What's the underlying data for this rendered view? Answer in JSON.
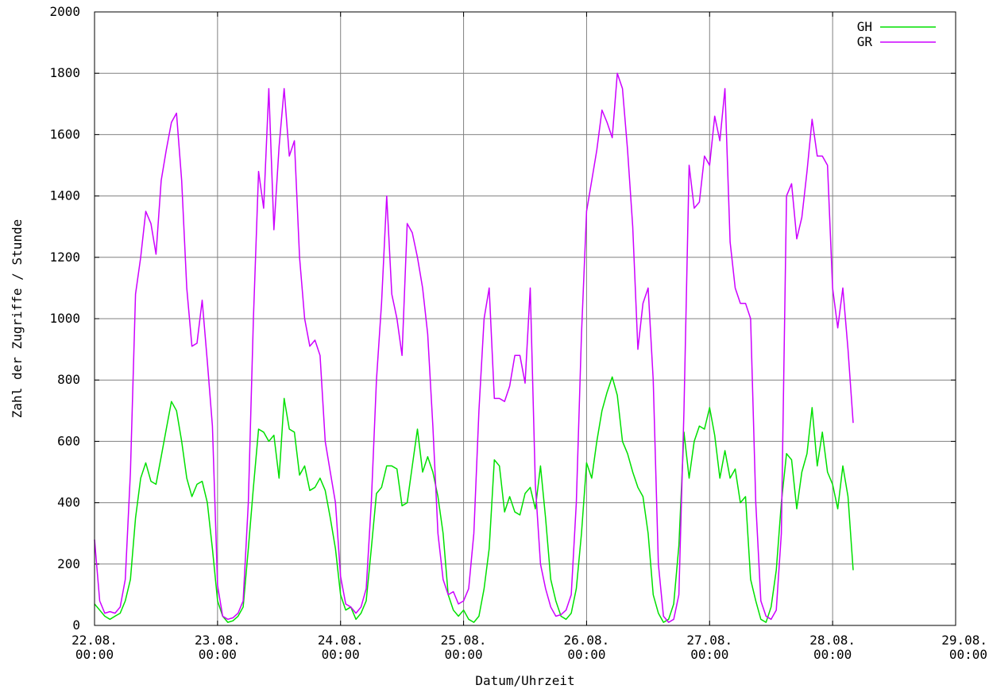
{
  "chart_data": {
    "type": "line",
    "xlabel": "Datum/Uhrzeit",
    "ylabel": "Zahl der Zugriffe / Stunde",
    "ylim": [
      0,
      2000
    ],
    "xlim_hours": [
      0,
      168
    ],
    "grid": true,
    "legend_position": "top-right",
    "x_ticks": [
      {
        "line1": "22.08.",
        "line2": "00:00"
      },
      {
        "line1": "23.08.",
        "line2": "00:00"
      },
      {
        "line1": "24.08.",
        "line2": "00:00"
      },
      {
        "line1": "25.08.",
        "line2": "00:00"
      },
      {
        "line1": "26.08.",
        "line2": "00:00"
      },
      {
        "line1": "27.08.",
        "line2": "00:00"
      },
      {
        "line1": "28.08.",
        "line2": "00:00"
      },
      {
        "line1": "29.08.",
        "line2": "00:00"
      }
    ],
    "y_ticks": [
      0,
      200,
      400,
      600,
      800,
      1000,
      1200,
      1400,
      1600,
      1800,
      2000
    ],
    "series": [
      {
        "name": "GH",
        "color": "#00e000",
        "points": [
          [
            0,
            70
          ],
          [
            1,
            50
          ],
          [
            2,
            30
          ],
          [
            3,
            20
          ],
          [
            4,
            30
          ],
          [
            5,
            40
          ],
          [
            6,
            80
          ],
          [
            7,
            150
          ],
          [
            8,
            350
          ],
          [
            9,
            480
          ],
          [
            10,
            530
          ],
          [
            11,
            470
          ],
          [
            12,
            460
          ],
          [
            13,
            550
          ],
          [
            14,
            640
          ],
          [
            15,
            730
          ],
          [
            16,
            700
          ],
          [
            17,
            600
          ],
          [
            18,
            480
          ],
          [
            19,
            420
          ],
          [
            20,
            460
          ],
          [
            21,
            470
          ],
          [
            22,
            400
          ],
          [
            23,
            250
          ],
          [
            24,
            80
          ],
          [
            25,
            30
          ],
          [
            26,
            10
          ],
          [
            27,
            15
          ],
          [
            28,
            30
          ],
          [
            29,
            60
          ],
          [
            30,
            250
          ],
          [
            31,
            450
          ],
          [
            32,
            640
          ],
          [
            33,
            630
          ],
          [
            34,
            600
          ],
          [
            35,
            620
          ],
          [
            36,
            480
          ],
          [
            37,
            740
          ],
          [
            38,
            640
          ],
          [
            39,
            630
          ],
          [
            40,
            490
          ],
          [
            41,
            520
          ],
          [
            42,
            440
          ],
          [
            43,
            450
          ],
          [
            44,
            480
          ],
          [
            45,
            440
          ],
          [
            46,
            350
          ],
          [
            47,
            250
          ],
          [
            48,
            100
          ],
          [
            49,
            50
          ],
          [
            50,
            60
          ],
          [
            51,
            20
          ],
          [
            52,
            40
          ],
          [
            53,
            80
          ],
          [
            54,
            250
          ],
          [
            55,
            430
          ],
          [
            56,
            450
          ],
          [
            57,
            520
          ],
          [
            58,
            520
          ],
          [
            59,
            510
          ],
          [
            60,
            390
          ],
          [
            61,
            400
          ],
          [
            62,
            520
          ],
          [
            63,
            640
          ],
          [
            64,
            500
          ],
          [
            65,
            550
          ],
          [
            66,
            500
          ],
          [
            67,
            420
          ],
          [
            68,
            300
          ],
          [
            69,
            100
          ],
          [
            70,
            50
          ],
          [
            71,
            30
          ],
          [
            72,
            50
          ],
          [
            73,
            20
          ],
          [
            74,
            10
          ],
          [
            75,
            30
          ],
          [
            76,
            120
          ],
          [
            77,
            250
          ],
          [
            78,
            540
          ],
          [
            79,
            520
          ],
          [
            80,
            370
          ],
          [
            81,
            420
          ],
          [
            82,
            370
          ],
          [
            83,
            360
          ],
          [
            84,
            430
          ],
          [
            85,
            450
          ],
          [
            86,
            380
          ],
          [
            87,
            520
          ],
          [
            88,
            350
          ],
          [
            89,
            150
          ],
          [
            90,
            80
          ],
          [
            91,
            30
          ],
          [
            92,
            20
          ],
          [
            93,
            40
          ],
          [
            94,
            120
          ],
          [
            95,
            300
          ],
          [
            96,
            530
          ],
          [
            97,
            480
          ],
          [
            98,
            600
          ],
          [
            99,
            700
          ],
          [
            100,
            760
          ],
          [
            101,
            810
          ],
          [
            102,
            750
          ],
          [
            103,
            600
          ],
          [
            104,
            560
          ],
          [
            105,
            500
          ],
          [
            106,
            450
          ],
          [
            107,
            420
          ],
          [
            108,
            300
          ],
          [
            109,
            100
          ],
          [
            110,
            40
          ],
          [
            111,
            10
          ],
          [
            112,
            20
          ],
          [
            113,
            70
          ],
          [
            114,
            260
          ],
          [
            115,
            630
          ],
          [
            116,
            480
          ],
          [
            117,
            600
          ],
          [
            118,
            650
          ],
          [
            119,
            640
          ],
          [
            120,
            710
          ],
          [
            121,
            620
          ],
          [
            122,
            480
          ],
          [
            123,
            570
          ],
          [
            124,
            480
          ],
          [
            125,
            510
          ],
          [
            126,
            400
          ],
          [
            127,
            420
          ],
          [
            128,
            150
          ],
          [
            129,
            80
          ],
          [
            130,
            20
          ],
          [
            131,
            10
          ],
          [
            132,
            60
          ],
          [
            133,
            180
          ],
          [
            134,
            400
          ],
          [
            135,
            560
          ],
          [
            136,
            540
          ],
          [
            137,
            380
          ],
          [
            138,
            500
          ],
          [
            139,
            560
          ],
          [
            140,
            710
          ],
          [
            141,
            520
          ],
          [
            142,
            630
          ],
          [
            143,
            500
          ],
          [
            144,
            460
          ],
          [
            145,
            380
          ],
          [
            146,
            520
          ],
          [
            147,
            420
          ],
          [
            148,
            180
          ]
        ]
      },
      {
        "name": "GR",
        "color": "#cc00ff",
        "points": [
          [
            0,
            280
          ],
          [
            1,
            80
          ],
          [
            2,
            40
          ],
          [
            3,
            45
          ],
          [
            4,
            40
          ],
          [
            5,
            60
          ],
          [
            6,
            150
          ],
          [
            7,
            500
          ],
          [
            8,
            1080
          ],
          [
            9,
            1200
          ],
          [
            10,
            1350
          ],
          [
            11,
            1310
          ],
          [
            12,
            1210
          ],
          [
            13,
            1450
          ],
          [
            14,
            1550
          ],
          [
            15,
            1640
          ],
          [
            16,
            1670
          ],
          [
            17,
            1450
          ],
          [
            18,
            1100
          ],
          [
            19,
            910
          ],
          [
            20,
            920
          ],
          [
            21,
            1060
          ],
          [
            22,
            860
          ],
          [
            23,
            650
          ],
          [
            24,
            130
          ],
          [
            25,
            30
          ],
          [
            26,
            20
          ],
          [
            27,
            25
          ],
          [
            28,
            40
          ],
          [
            29,
            80
          ],
          [
            30,
            400
          ],
          [
            31,
            1000
          ],
          [
            32,
            1480
          ],
          [
            33,
            1360
          ],
          [
            34,
            1750
          ],
          [
            35,
            1290
          ],
          [
            36,
            1560
          ],
          [
            37,
            1750
          ],
          [
            38,
            1530
          ],
          [
            39,
            1580
          ],
          [
            40,
            1200
          ],
          [
            41,
            1000
          ],
          [
            42,
            910
          ],
          [
            43,
            930
          ],
          [
            44,
            880
          ],
          [
            45,
            600
          ],
          [
            46,
            500
          ],
          [
            47,
            400
          ],
          [
            48,
            160
          ],
          [
            49,
            70
          ],
          [
            50,
            60
          ],
          [
            51,
            40
          ],
          [
            52,
            60
          ],
          [
            53,
            120
          ],
          [
            54,
            400
          ],
          [
            55,
            800
          ],
          [
            56,
            1050
          ],
          [
            57,
            1400
          ],
          [
            58,
            1080
          ],
          [
            59,
            1000
          ],
          [
            60,
            880
          ],
          [
            61,
            1310
          ],
          [
            62,
            1280
          ],
          [
            63,
            1200
          ],
          [
            64,
            1100
          ],
          [
            65,
            950
          ],
          [
            66,
            650
          ],
          [
            67,
            300
          ],
          [
            68,
            150
          ],
          [
            69,
            100
          ],
          [
            70,
            110
          ],
          [
            71,
            70
          ],
          [
            72,
            80
          ],
          [
            73,
            120
          ],
          [
            74,
            300
          ],
          [
            75,
            700
          ],
          [
            76,
            1000
          ],
          [
            77,
            1100
          ],
          [
            78,
            740
          ],
          [
            79,
            740
          ],
          [
            80,
            730
          ],
          [
            81,
            780
          ],
          [
            82,
            880
          ],
          [
            83,
            880
          ],
          [
            84,
            790
          ],
          [
            85,
            1100
          ],
          [
            86,
            460
          ],
          [
            87,
            200
          ],
          [
            88,
            120
          ],
          [
            89,
            60
          ],
          [
            90,
            30
          ],
          [
            91,
            35
          ],
          [
            92,
            50
          ],
          [
            93,
            100
          ],
          [
            94,
            400
          ],
          [
            95,
            950
          ],
          [
            96,
            1350
          ],
          [
            97,
            1450
          ],
          [
            98,
            1550
          ],
          [
            99,
            1680
          ],
          [
            100,
            1640
          ],
          [
            101,
            1590
          ],
          [
            102,
            1800
          ],
          [
            103,
            1750
          ],
          [
            104,
            1550
          ],
          [
            105,
            1300
          ],
          [
            106,
            900
          ],
          [
            107,
            1050
          ],
          [
            108,
            1100
          ],
          [
            109,
            800
          ],
          [
            110,
            200
          ],
          [
            111,
            30
          ],
          [
            112,
            10
          ],
          [
            113,
            20
          ],
          [
            114,
            100
          ],
          [
            115,
            700
          ],
          [
            116,
            1500
          ],
          [
            117,
            1360
          ],
          [
            118,
            1380
          ],
          [
            119,
            1530
          ],
          [
            120,
            1500
          ],
          [
            121,
            1660
          ],
          [
            122,
            1580
          ],
          [
            123,
            1750
          ],
          [
            124,
            1250
          ],
          [
            125,
            1100
          ],
          [
            126,
            1050
          ],
          [
            127,
            1050
          ],
          [
            128,
            1000
          ],
          [
            129,
            400
          ],
          [
            130,
            80
          ],
          [
            131,
            30
          ],
          [
            132,
            20
          ],
          [
            133,
            50
          ],
          [
            134,
            300
          ],
          [
            135,
            1400
          ],
          [
            136,
            1440
          ],
          [
            137,
            1260
          ],
          [
            138,
            1330
          ],
          [
            139,
            1480
          ],
          [
            140,
            1650
          ],
          [
            141,
            1530
          ],
          [
            142,
            1530
          ],
          [
            143,
            1500
          ],
          [
            144,
            1100
          ],
          [
            145,
            970
          ],
          [
            146,
            1100
          ],
          [
            147,
            900
          ],
          [
            148,
            660
          ]
        ]
      }
    ]
  }
}
